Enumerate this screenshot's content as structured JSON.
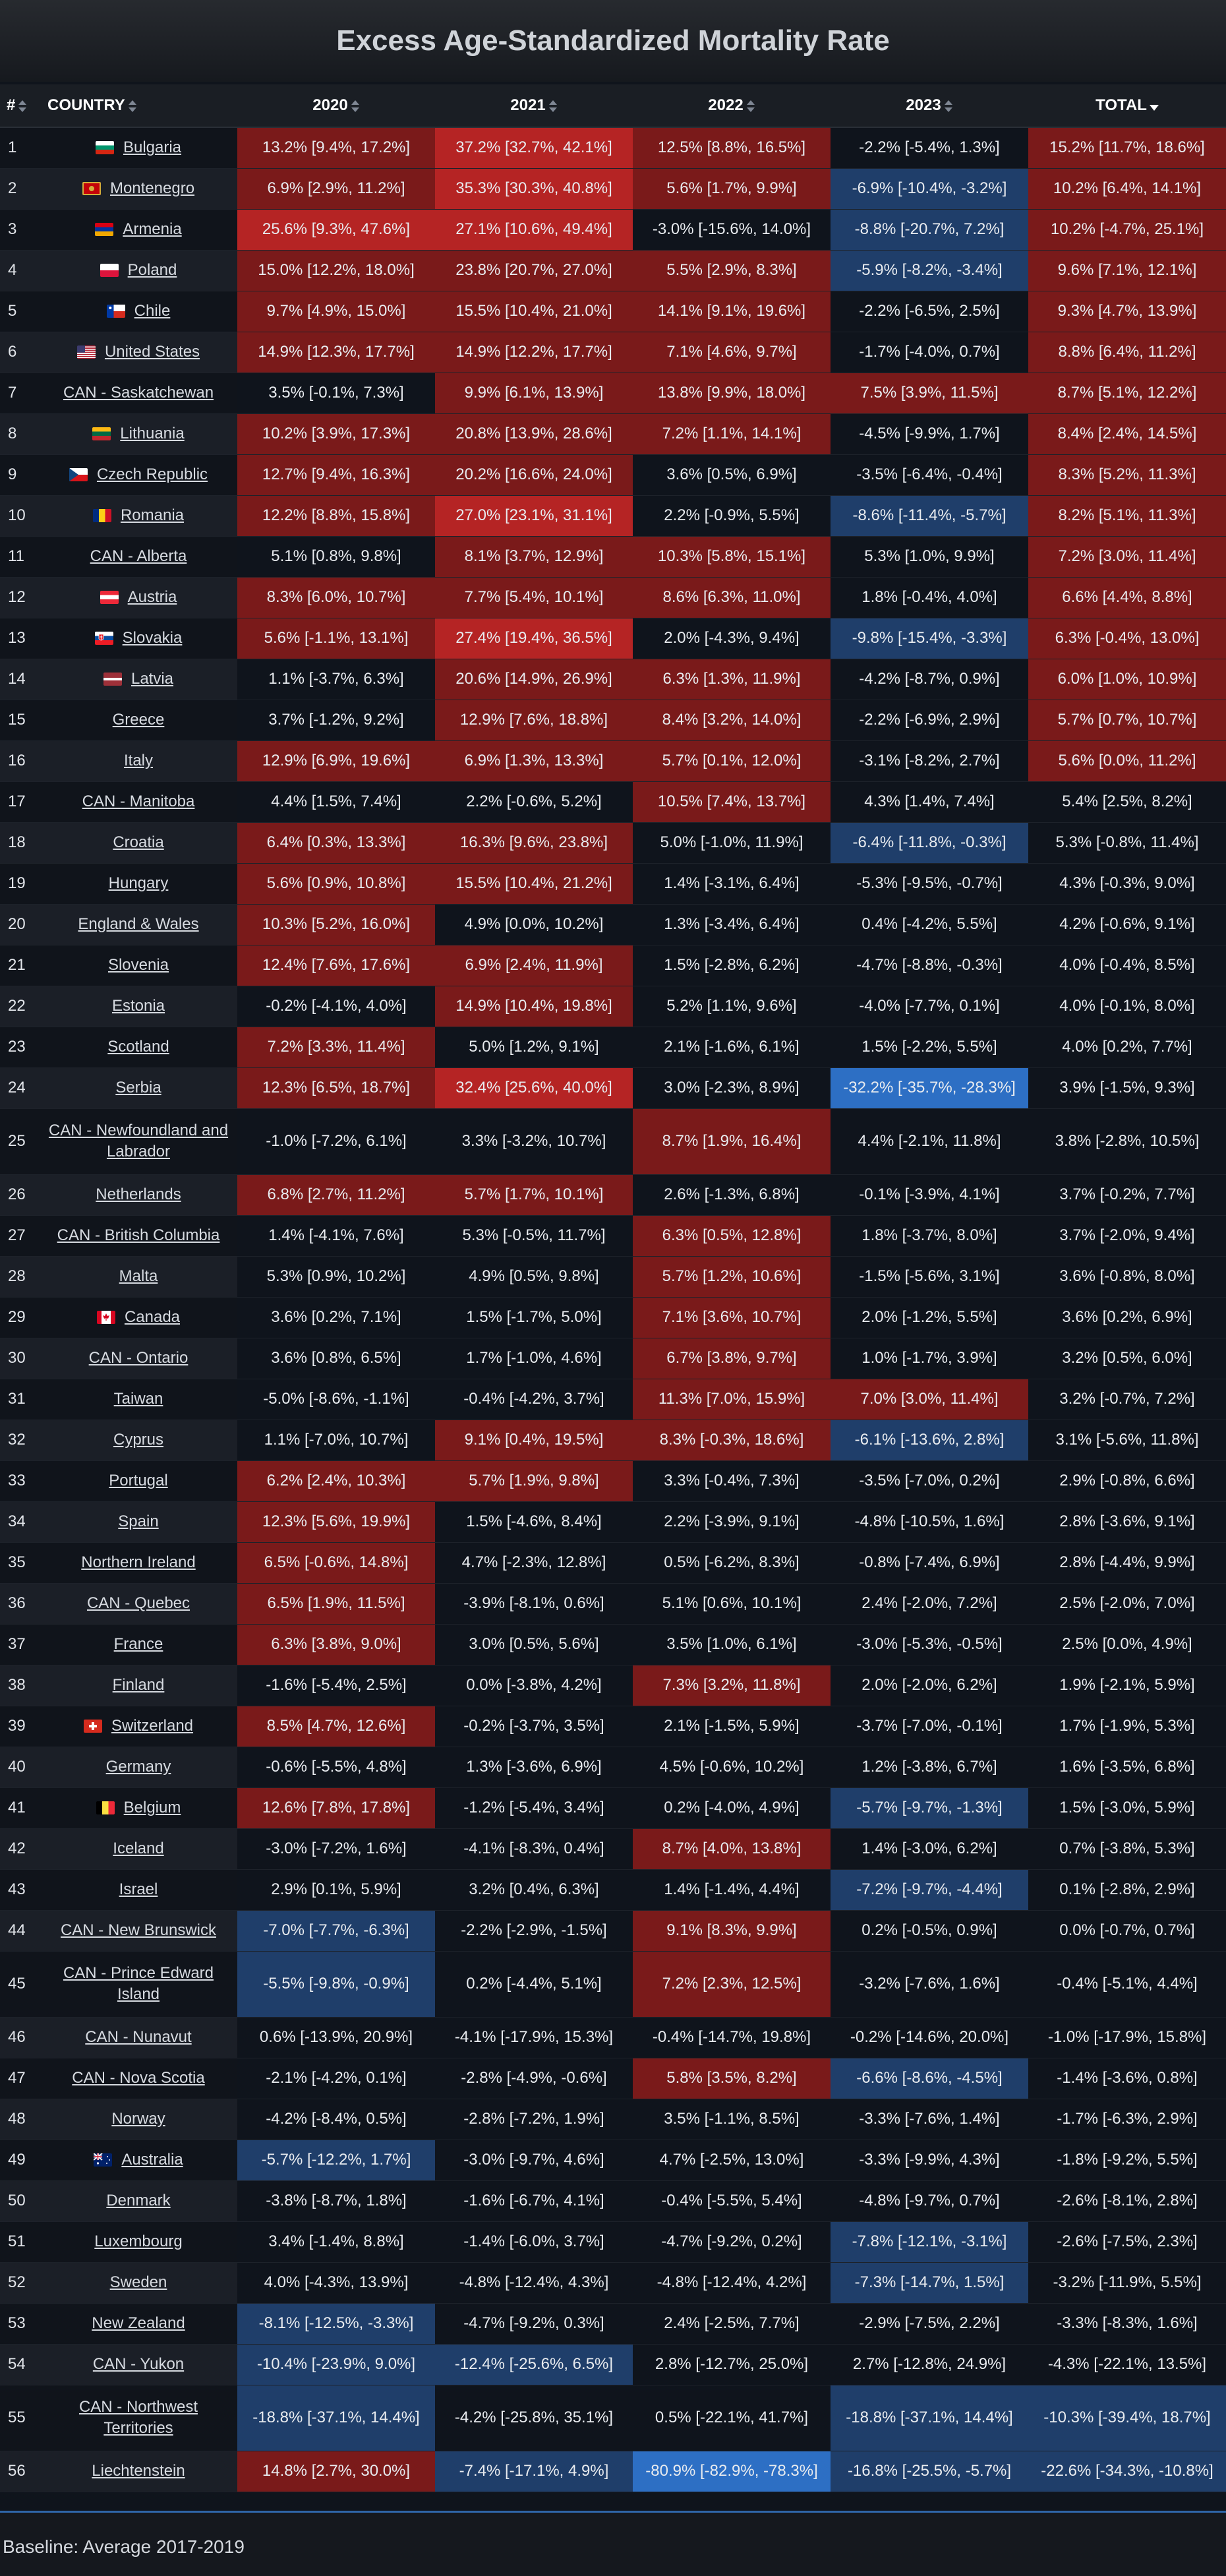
{
  "title": "Excess Age-Standardized Mortality Rate",
  "baseline": "Baseline: Average 2017-2019",
  "columns": {
    "rank": "#",
    "country": "COUNTRY",
    "y2020": "2020",
    "y2021": "2021",
    "y2022": "2022",
    "y2023": "2023",
    "total": "TOTAL"
  },
  "sort": {
    "column": "total",
    "direction": "desc"
  },
  "colors": {
    "positive": "#7a1a1a",
    "negative": "#1f3e6a",
    "neutral": "#0f141c",
    "strong_positive": "#b52424",
    "strong_negative": "#2d6fc4"
  },
  "rows": [
    {
      "rank": "1",
      "country": "Bulgaria",
      "flag": "bg-flag",
      "v2020": "13.2% [9.4%, 17.2%]",
      "v2021": "37.2% [32.7%, 42.1%]",
      "v2022": "12.5% [8.8%, 16.5%]",
      "v2023": "-2.2% [-5.4%, 1.3%]",
      "total": "15.2% [11.7%, 18.6%]"
    },
    {
      "rank": "2",
      "country": "Montenegro",
      "flag": "me-flag",
      "v2020": "6.9% [2.9%, 11.2%]",
      "v2021": "35.3% [30.3%, 40.8%]",
      "v2022": "5.6% [1.7%, 9.9%]",
      "v2023": "-6.9% [-10.4%, -3.2%]",
      "total": "10.2% [6.4%, 14.1%]"
    },
    {
      "rank": "3",
      "country": "Armenia",
      "flag": "am-flag",
      "v2020": "25.6% [9.3%, 47.6%]",
      "v2021": "27.1% [10.6%, 49.4%]",
      "v2022": "-3.0% [-15.6%, 14.0%]",
      "v2023": "-8.8% [-20.7%, 7.2%]",
      "total": "10.2% [-4.7%, 25.1%]"
    },
    {
      "rank": "4",
      "country": "Poland",
      "flag": "pl-flag",
      "v2020": "15.0% [12.2%, 18.0%]",
      "v2021": "23.8% [20.7%, 27.0%]",
      "v2022": "5.5% [2.9%, 8.3%]",
      "v2023": "-5.9% [-8.2%, -3.4%]",
      "total": "9.6% [7.1%, 12.1%]"
    },
    {
      "rank": "5",
      "country": "Chile",
      "flag": "cl-flag",
      "v2020": "9.7% [4.9%, 15.0%]",
      "v2021": "15.5% [10.4%, 21.0%]",
      "v2022": "14.1% [9.1%, 19.6%]",
      "v2023": "-2.2% [-6.5%, 2.5%]",
      "total": "9.3% [4.7%, 13.9%]"
    },
    {
      "rank": "6",
      "country": "United States",
      "flag": "us-flag",
      "v2020": "14.9% [12.3%, 17.7%]",
      "v2021": "14.9% [12.2%, 17.7%]",
      "v2022": "7.1% [4.6%, 9.7%]",
      "v2023": "-1.7% [-4.0%, 0.7%]",
      "total": "8.8% [6.4%, 11.2%]"
    },
    {
      "rank": "7",
      "country": "CAN - Saskatchewan",
      "flag": "",
      "v2020": "3.5% [-0.1%, 7.3%]",
      "v2021": "9.9% [6.1%, 13.9%]",
      "v2022": "13.8% [9.9%, 18.0%]",
      "v2023": "7.5% [3.9%, 11.5%]",
      "total": "8.7% [5.1%, 12.2%]"
    },
    {
      "rank": "8",
      "country": "Lithuania",
      "flag": "lt-flag",
      "v2020": "10.2% [3.9%, 17.3%]",
      "v2021": "20.8% [13.9%, 28.6%]",
      "v2022": "7.2% [1.1%, 14.1%]",
      "v2023": "-4.5% [-9.9%, 1.7%]",
      "total": "8.4% [2.4%, 14.5%]"
    },
    {
      "rank": "9",
      "country": "Czech Republic",
      "flag": "cz-flag",
      "v2020": "12.7% [9.4%, 16.3%]",
      "v2021": "20.2% [16.6%, 24.0%]",
      "v2022": "3.6% [0.5%, 6.9%]",
      "v2023": "-3.5% [-6.4%, -0.4%]",
      "total": "8.3% [5.2%, 11.3%]"
    },
    {
      "rank": "10",
      "country": "Romania",
      "flag": "ro-flag",
      "v2020": "12.2% [8.8%, 15.8%]",
      "v2021": "27.0% [23.1%, 31.1%]",
      "v2022": "2.2% [-0.9%, 5.5%]",
      "v2023": "-8.6% [-11.4%, -5.7%]",
      "total": "8.2% [5.1%, 11.3%]"
    },
    {
      "rank": "11",
      "country": "CAN - Alberta",
      "flag": "",
      "v2020": "5.1% [0.8%, 9.8%]",
      "v2021": "8.1% [3.7%, 12.9%]",
      "v2022": "10.3% [5.8%, 15.1%]",
      "v2023": "5.3% [1.0%, 9.9%]",
      "total": "7.2% [3.0%, 11.4%]"
    },
    {
      "rank": "12",
      "country": "Austria",
      "flag": "at-flag",
      "v2020": "8.3% [6.0%, 10.7%]",
      "v2021": "7.7% [5.4%, 10.1%]",
      "v2022": "8.6% [6.3%, 11.0%]",
      "v2023": "1.8% [-0.4%, 4.0%]",
      "total": "6.6% [4.4%, 8.8%]"
    },
    {
      "rank": "13",
      "country": "Slovakia",
      "flag": "sk-flag",
      "v2020": "5.6% [-1.1%, 13.1%]",
      "v2021": "27.4% [19.4%, 36.5%]",
      "v2022": "2.0% [-4.3%, 9.4%]",
      "v2023": "-9.8% [-15.4%, -3.3%]",
      "total": "6.3% [-0.4%, 13.0%]"
    },
    {
      "rank": "14",
      "country": "Latvia",
      "flag": "lv-flag",
      "v2020": "1.1% [-3.7%, 6.3%]",
      "v2021": "20.6% [14.9%, 26.9%]",
      "v2022": "6.3% [1.3%, 11.9%]",
      "v2023": "-4.2% [-8.7%, 0.9%]",
      "total": "6.0% [1.0%, 10.9%]"
    },
    {
      "rank": "15",
      "country": "Greece",
      "flag": "",
      "v2020": "3.7% [-1.2%, 9.2%]",
      "v2021": "12.9% [7.6%, 18.8%]",
      "v2022": "8.4% [3.2%, 14.0%]",
      "v2023": "-2.2% [-6.9%, 2.9%]",
      "total": "5.7% [0.7%, 10.7%]"
    },
    {
      "rank": "16",
      "country": "Italy",
      "flag": "",
      "v2020": "12.9% [6.9%, 19.6%]",
      "v2021": "6.9% [1.3%, 13.3%]",
      "v2022": "5.7% [0.1%, 12.0%]",
      "v2023": "-3.1% [-8.2%, 2.7%]",
      "total": "5.6% [0.0%, 11.2%]"
    },
    {
      "rank": "17",
      "country": "CAN - Manitoba",
      "flag": "",
      "v2020": "4.4% [1.5%, 7.4%]",
      "v2021": "2.2% [-0.6%, 5.2%]",
      "v2022": "10.5% [7.4%, 13.7%]",
      "v2023": "4.3% [1.4%, 7.4%]",
      "total": "5.4% [2.5%, 8.2%]"
    },
    {
      "rank": "18",
      "country": "Croatia",
      "flag": "",
      "v2020": "6.4% [0.3%, 13.3%]",
      "v2021": "16.3% [9.6%, 23.8%]",
      "v2022": "5.0% [-1.0%, 11.9%]",
      "v2023": "-6.4% [-11.8%, -0.3%]",
      "total": "5.3% [-0.8%, 11.4%]"
    },
    {
      "rank": "19",
      "country": "Hungary",
      "flag": "",
      "v2020": "5.6% [0.9%, 10.8%]",
      "v2021": "15.5% [10.4%, 21.2%]",
      "v2022": "1.4% [-3.1%, 6.4%]",
      "v2023": "-5.3% [-9.5%, -0.7%]",
      "total": "4.3% [-0.3%, 9.0%]"
    },
    {
      "rank": "20",
      "country": "England & Wales",
      "flag": "",
      "v2020": "10.3% [5.2%, 16.0%]",
      "v2021": "4.9% [0.0%, 10.2%]",
      "v2022": "1.3% [-3.4%, 6.4%]",
      "v2023": "0.4% [-4.2%, 5.5%]",
      "total": "4.2% [-0.6%, 9.1%]"
    },
    {
      "rank": "21",
      "country": "Slovenia",
      "flag": "",
      "v2020": "12.4% [7.6%, 17.6%]",
      "v2021": "6.9% [2.4%, 11.9%]",
      "v2022": "1.5% [-2.8%, 6.2%]",
      "v2023": "-4.7% [-8.8%, -0.3%]",
      "total": "4.0% [-0.4%, 8.5%]"
    },
    {
      "rank": "22",
      "country": "Estonia",
      "flag": "",
      "v2020": "-0.2% [-4.1%, 4.0%]",
      "v2021": "14.9% [10.4%, 19.8%]",
      "v2022": "5.2% [1.1%, 9.6%]",
      "v2023": "-4.0% [-7.7%, 0.1%]",
      "total": "4.0% [-0.1%, 8.0%]"
    },
    {
      "rank": "23",
      "country": "Scotland",
      "flag": "",
      "v2020": "7.2% [3.3%, 11.4%]",
      "v2021": "5.0% [1.2%, 9.1%]",
      "v2022": "2.1% [-1.6%, 6.1%]",
      "v2023": "1.5% [-2.2%, 5.5%]",
      "total": "4.0% [0.2%, 7.7%]"
    },
    {
      "rank": "24",
      "country": "Serbia",
      "flag": "",
      "v2020": "12.3% [6.5%, 18.7%]",
      "v2021": "32.4% [25.6%, 40.0%]",
      "v2022": "3.0% [-2.3%, 8.9%]",
      "v2023": "-32.2% [-35.7%, -28.3%]",
      "total": "3.9% [-1.5%, 9.3%]"
    },
    {
      "rank": "25",
      "country": "CAN - Newfoundland and Labrador",
      "flag": "",
      "v2020": "-1.0% [-7.2%, 6.1%]",
      "v2021": "3.3% [-3.2%, 10.7%]",
      "v2022": "8.7% [1.9%, 16.4%]",
      "v2023": "4.4% [-2.1%, 11.8%]",
      "total": "3.8% [-2.8%, 10.5%]"
    },
    {
      "rank": "26",
      "country": "Netherlands",
      "flag": "",
      "v2020": "6.8% [2.7%, 11.2%]",
      "v2021": "5.7% [1.7%, 10.1%]",
      "v2022": "2.6% [-1.3%, 6.8%]",
      "v2023": "-0.1% [-3.9%, 4.1%]",
      "total": "3.7% [-0.2%, 7.7%]"
    },
    {
      "rank": "27",
      "country": "CAN - British Columbia",
      "flag": "",
      "v2020": "1.4% [-4.1%, 7.6%]",
      "v2021": "5.3% [-0.5%, 11.7%]",
      "v2022": "6.3% [0.5%, 12.8%]",
      "v2023": "1.8% [-3.7%, 8.0%]",
      "total": "3.7% [-2.0%, 9.4%]"
    },
    {
      "rank": "28",
      "country": "Malta",
      "flag": "",
      "v2020": "5.3% [0.9%, 10.2%]",
      "v2021": "4.9% [0.5%, 9.8%]",
      "v2022": "5.7% [1.2%, 10.6%]",
      "v2023": "-1.5% [-5.6%, 3.1%]",
      "total": "3.6% [-0.8%, 8.0%]"
    },
    {
      "rank": "29",
      "country": "Canada",
      "flag": "ca-flag",
      "v2020": "3.6% [0.2%, 7.1%]",
      "v2021": "1.5% [-1.7%, 5.0%]",
      "v2022": "7.1% [3.6%, 10.7%]",
      "v2023": "2.0% [-1.2%, 5.5%]",
      "total": "3.6% [0.2%, 6.9%]"
    },
    {
      "rank": "30",
      "country": "CAN - Ontario",
      "flag": "",
      "v2020": "3.6% [0.8%, 6.5%]",
      "v2021": "1.7% [-1.0%, 4.6%]",
      "v2022": "6.7% [3.8%, 9.7%]",
      "v2023": "1.0% [-1.7%, 3.9%]",
      "total": "3.2% [0.5%, 6.0%]"
    },
    {
      "rank": "31",
      "country": "Taiwan",
      "flag": "",
      "v2020": "-5.0% [-8.6%, -1.1%]",
      "v2021": "-0.4% [-4.2%, 3.7%]",
      "v2022": "11.3% [7.0%, 15.9%]",
      "v2023": "7.0% [3.0%, 11.4%]",
      "total": "3.2% [-0.7%, 7.2%]"
    },
    {
      "rank": "32",
      "country": "Cyprus",
      "flag": "",
      "v2020": "1.1% [-7.0%, 10.7%]",
      "v2021": "9.1% [0.4%, 19.5%]",
      "v2022": "8.3% [-0.3%, 18.6%]",
      "v2023": "-6.1% [-13.6%, 2.8%]",
      "total": "3.1% [-5.6%, 11.8%]"
    },
    {
      "rank": "33",
      "country": "Portugal",
      "flag": "",
      "v2020": "6.2% [2.4%, 10.3%]",
      "v2021": "5.7% [1.9%, 9.8%]",
      "v2022": "3.3% [-0.4%, 7.3%]",
      "v2023": "-3.5% [-7.0%, 0.2%]",
      "total": "2.9% [-0.8%, 6.6%]"
    },
    {
      "rank": "34",
      "country": "Spain",
      "flag": "",
      "v2020": "12.3% [5.6%, 19.9%]",
      "v2021": "1.5% [-4.6%, 8.4%]",
      "v2022": "2.2% [-3.9%, 9.1%]",
      "v2023": "-4.8% [-10.5%, 1.6%]",
      "total": "2.8% [-3.6%, 9.1%]"
    },
    {
      "rank": "35",
      "country": "Northern Ireland",
      "flag": "",
      "v2020": "6.5% [-0.6%, 14.8%]",
      "v2021": "4.7% [-2.3%, 12.8%]",
      "v2022": "0.5% [-6.2%, 8.3%]",
      "v2023": "-0.8% [-7.4%, 6.9%]",
      "total": "2.8% [-4.4%, 9.9%]"
    },
    {
      "rank": "36",
      "country": "CAN - Quebec",
      "flag": "",
      "v2020": "6.5% [1.9%, 11.5%]",
      "v2021": "-3.9% [-8.1%, 0.6%]",
      "v2022": "5.1% [0.6%, 10.1%]",
      "v2023": "2.4% [-2.0%, 7.2%]",
      "total": "2.5% [-2.0%, 7.0%]"
    },
    {
      "rank": "37",
      "country": "France",
      "flag": "",
      "v2020": "6.3% [3.8%, 9.0%]",
      "v2021": "3.0% [0.5%, 5.6%]",
      "v2022": "3.5% [1.0%, 6.1%]",
      "v2023": "-3.0% [-5.3%, -0.5%]",
      "total": "2.5% [0.0%, 4.9%]"
    },
    {
      "rank": "38",
      "country": "Finland",
      "flag": "",
      "v2020": "-1.6% [-5.4%, 2.5%]",
      "v2021": "0.0% [-3.8%, 4.2%]",
      "v2022": "7.3% [3.2%, 11.8%]",
      "v2023": "2.0% [-2.0%, 6.2%]",
      "total": "1.9% [-2.1%, 5.9%]"
    },
    {
      "rank": "39",
      "country": "Switzerland",
      "flag": "ch-flag",
      "v2020": "8.5% [4.7%, 12.6%]",
      "v2021": "-0.2% [-3.7%, 3.5%]",
      "v2022": "2.1% [-1.5%, 5.9%]",
      "v2023": "-3.7% [-7.0%, -0.1%]",
      "total": "1.7% [-1.9%, 5.3%]"
    },
    {
      "rank": "40",
      "country": "Germany",
      "flag": "",
      "v2020": "-0.6% [-5.5%, 4.8%]",
      "v2021": "1.3% [-3.6%, 6.9%]",
      "v2022": "4.5% [-0.6%, 10.2%]",
      "v2023": "1.2% [-3.8%, 6.7%]",
      "total": "1.6% [-3.5%, 6.8%]"
    },
    {
      "rank": "41",
      "country": "Belgium",
      "flag": "be-flag",
      "v2020": "12.6% [7.8%, 17.8%]",
      "v2021": "-1.2% [-5.4%, 3.4%]",
      "v2022": "0.2% [-4.0%, 4.9%]",
      "v2023": "-5.7% [-9.7%, -1.3%]",
      "total": "1.5% [-3.0%, 5.9%]"
    },
    {
      "rank": "42",
      "country": "Iceland",
      "flag": "",
      "v2020": "-3.0% [-7.2%, 1.6%]",
      "v2021": "-4.1% [-8.3%, 0.4%]",
      "v2022": "8.7% [4.0%, 13.8%]",
      "v2023": "1.4% [-3.0%, 6.2%]",
      "total": "0.7% [-3.8%, 5.3%]"
    },
    {
      "rank": "43",
      "country": "Israel",
      "flag": "",
      "v2020": "2.9% [0.1%, 5.9%]",
      "v2021": "3.2% [0.4%, 6.3%]",
      "v2022": "1.4% [-1.4%, 4.4%]",
      "v2023": "-7.2% [-9.7%, -4.4%]",
      "total": "0.1% [-2.8%, 2.9%]"
    },
    {
      "rank": "44",
      "country": "CAN - New Brunswick",
      "flag": "",
      "v2020": "-7.0% [-7.7%, -6.3%]",
      "v2021": "-2.2% [-2.9%, -1.5%]",
      "v2022": "9.1% [8.3%, 9.9%]",
      "v2023": "0.2% [-0.5%, 0.9%]",
      "total": "0.0% [-0.7%, 0.7%]"
    },
    {
      "rank": "45",
      "country": "CAN - Prince Edward Island",
      "flag": "",
      "v2020": "-5.5% [-9.8%, -0.9%]",
      "v2021": "0.2% [-4.4%, 5.1%]",
      "v2022": "7.2% [2.3%, 12.5%]",
      "v2023": "-3.2% [-7.6%, 1.6%]",
      "total": "-0.4% [-5.1%, 4.4%]"
    },
    {
      "rank": "46",
      "country": "CAN - Nunavut",
      "flag": "",
      "v2020": "0.6% [-13.9%, 20.9%]",
      "v2021": "-4.1% [-17.9%, 15.3%]",
      "v2022": "-0.4% [-14.7%, 19.8%]",
      "v2023": "-0.2% [-14.6%, 20.0%]",
      "total": "-1.0% [-17.9%, 15.8%]"
    },
    {
      "rank": "47",
      "country": "CAN - Nova Scotia",
      "flag": "",
      "v2020": "-2.1% [-4.2%, 0.1%]",
      "v2021": "-2.8% [-4.9%, -0.6%]",
      "v2022": "5.8% [3.5%, 8.2%]",
      "v2023": "-6.6% [-8.6%, -4.5%]",
      "total": "-1.4% [-3.6%, 0.8%]"
    },
    {
      "rank": "48",
      "country": "Norway",
      "flag": "",
      "v2020": "-4.2% [-8.4%, 0.5%]",
      "v2021": "-2.8% [-7.2%, 1.9%]",
      "v2022": "3.5% [-1.1%, 8.5%]",
      "v2023": "-3.3% [-7.6%, 1.4%]",
      "total": "-1.7% [-6.3%, 2.9%]"
    },
    {
      "rank": "49",
      "country": "Australia",
      "flag": "au-flag",
      "v2020": "-5.7% [-12.2%, 1.7%]",
      "v2021": "-3.0% [-9.7%, 4.6%]",
      "v2022": "4.7% [-2.5%, 13.0%]",
      "v2023": "-3.3% [-9.9%, 4.3%]",
      "total": "-1.8% [-9.2%, 5.5%]"
    },
    {
      "rank": "50",
      "country": "Denmark",
      "flag": "",
      "v2020": "-3.8% [-8.7%, 1.8%]",
      "v2021": "-1.6% [-6.7%, 4.1%]",
      "v2022": "-0.4% [-5.5%, 5.4%]",
      "v2023": "-4.8% [-9.7%, 0.7%]",
      "total": "-2.6% [-8.1%, 2.8%]"
    },
    {
      "rank": "51",
      "country": "Luxembourg",
      "flag": "",
      "v2020": "3.4% [-1.4%, 8.8%]",
      "v2021": "-1.4% [-6.0%, 3.7%]",
      "v2022": "-4.7% [-9.2%, 0.2%]",
      "v2023": "-7.8% [-12.1%, -3.1%]",
      "total": "-2.6% [-7.5%, 2.3%]"
    },
    {
      "rank": "52",
      "country": "Sweden",
      "flag": "",
      "v2020": "4.0% [-4.3%, 13.9%]",
      "v2021": "-4.8% [-12.4%, 4.3%]",
      "v2022": "-4.8% [-12.4%, 4.2%]",
      "v2023": "-7.3% [-14.7%, 1.5%]",
      "total": "-3.2% [-11.9%, 5.5%]"
    },
    {
      "rank": "53",
      "country": "New Zealand",
      "flag": "",
      "v2020": "-8.1% [-12.5%, -3.3%]",
      "v2021": "-4.7% [-9.2%, 0.3%]",
      "v2022": "2.4% [-2.5%, 7.7%]",
      "v2023": "-2.9% [-7.5%, 2.2%]",
      "total": "-3.3% [-8.3%, 1.6%]"
    },
    {
      "rank": "54",
      "country": "CAN - Yukon",
      "flag": "",
      "v2020": "-10.4% [-23.9%, 9.0%]",
      "v2021": "-12.4% [-25.6%, 6.5%]",
      "v2022": "2.8% [-12.7%, 25.0%]",
      "v2023": "2.7% [-12.8%, 24.9%]",
      "total": "-4.3% [-22.1%, 13.5%]"
    },
    {
      "rank": "55",
      "country": "CAN - Northwest Territories",
      "flag": "",
      "v2020": "-18.8% [-37.1%, 14.4%]",
      "v2021": "-4.2% [-25.8%, 35.1%]",
      "v2022": "0.5% [-22.1%, 41.7%]",
      "v2023": "-18.8% [-37.1%, 14.4%]",
      "total": "-10.3% [-39.4%, 18.7%]"
    },
    {
      "rank": "56",
      "country": "Liechtenstein",
      "flag": "",
      "v2020": "14.8% [2.7%, 30.0%]",
      "v2021": "-7.4% [-17.1%, 4.9%]",
      "v2022": "-80.9% [-82.9%, -78.3%]",
      "v2023": "-16.8% [-25.5%, -5.7%]",
      "total": "-22.6% [-34.3%, -10.8%]"
    }
  ]
}
